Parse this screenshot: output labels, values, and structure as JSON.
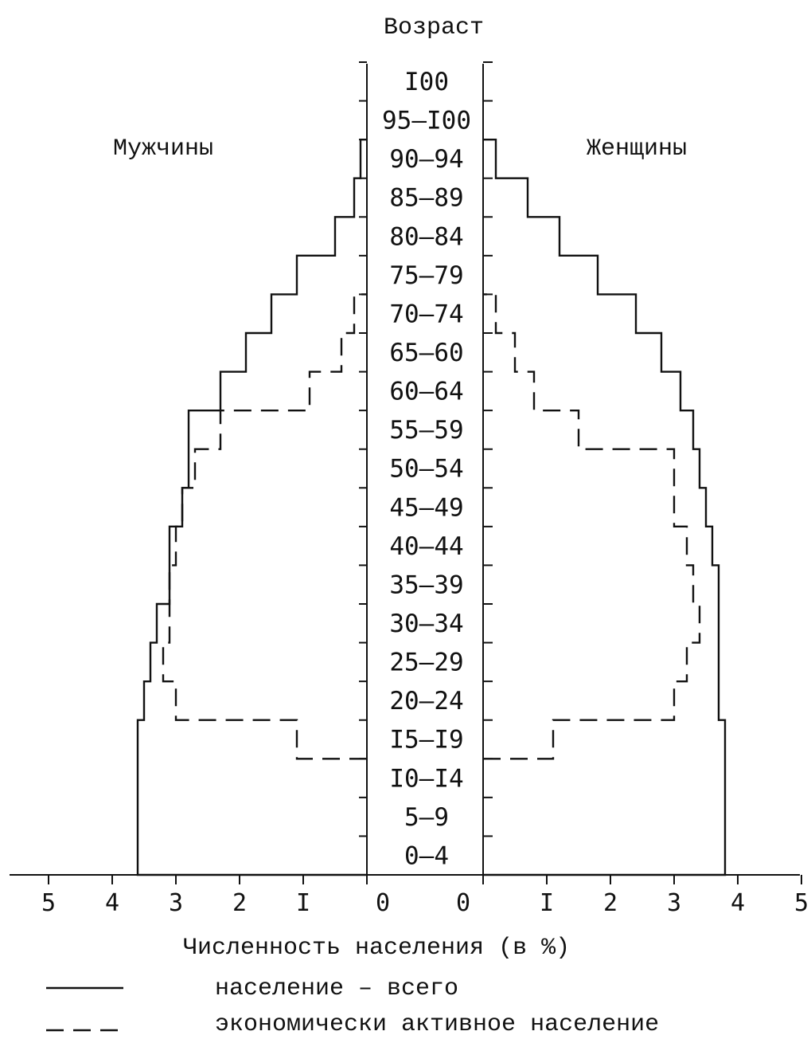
{
  "chart_data": {
    "type": "population_pyramid",
    "title": "",
    "center_label": "Возраст",
    "left_label": "Мужчины",
    "right_label": "Женщины",
    "xlabel": "Численность населения (в %)",
    "age_groups": [
      "0–4",
      "5–9",
      "I0–I4",
      "I5–I9",
      "20–24",
      "25–29",
      "30–34",
      "35–39",
      "40–44",
      "45–49",
      "50–54",
      "55–59",
      "60–64",
      "65–60",
      "70–74",
      "75–79",
      "80–84",
      "85–89",
      "90–94",
      "95–I00",
      "I00"
    ],
    "x_ticks_left": [
      "5",
      "4",
      "3",
      "2",
      "I",
      "0"
    ],
    "x_ticks_right": [
      "0",
      "I",
      "2",
      "3",
      "4",
      "5"
    ],
    "xlim": [
      0,
      5
    ],
    "series": [
      {
        "name": "население – всего",
        "style": "solid",
        "men": [
          3.6,
          3.6,
          3.6,
          3.6,
          3.5,
          3.4,
          3.3,
          3.1,
          3.1,
          2.9,
          2.8,
          2.8,
          2.3,
          1.9,
          1.5,
          1.1,
          0.5,
          0.2,
          0.1,
          0.0,
          0.0
        ],
        "women": [
          3.8,
          3.8,
          3.8,
          3.8,
          3.7,
          3.7,
          3.7,
          3.7,
          3.6,
          3.5,
          3.4,
          3.3,
          3.1,
          2.8,
          2.4,
          1.8,
          1.2,
          0.7,
          0.2,
          0.0,
          0.0
        ]
      },
      {
        "name": "экономически активное население",
        "style": "dashed",
        "men": [
          null,
          null,
          null,
          1.1,
          3.0,
          3.2,
          3.1,
          3.1,
          3.0,
          2.9,
          2.7,
          2.3,
          0.9,
          0.4,
          0.2,
          null,
          null,
          null,
          null,
          null,
          null
        ],
        "women": [
          null,
          null,
          null,
          1.1,
          3.0,
          3.2,
          3.4,
          3.3,
          3.2,
          3.0,
          3.0,
          1.5,
          0.8,
          0.5,
          0.2,
          null,
          null,
          null,
          null,
          null,
          null
        ]
      }
    ],
    "legend": [
      {
        "style": "solid",
        "label": "население – всего"
      },
      {
        "style": "dashed",
        "label": "экономически активное население"
      }
    ],
    "colors": {
      "ink": "#111111",
      "background": "#ffffff"
    }
  }
}
